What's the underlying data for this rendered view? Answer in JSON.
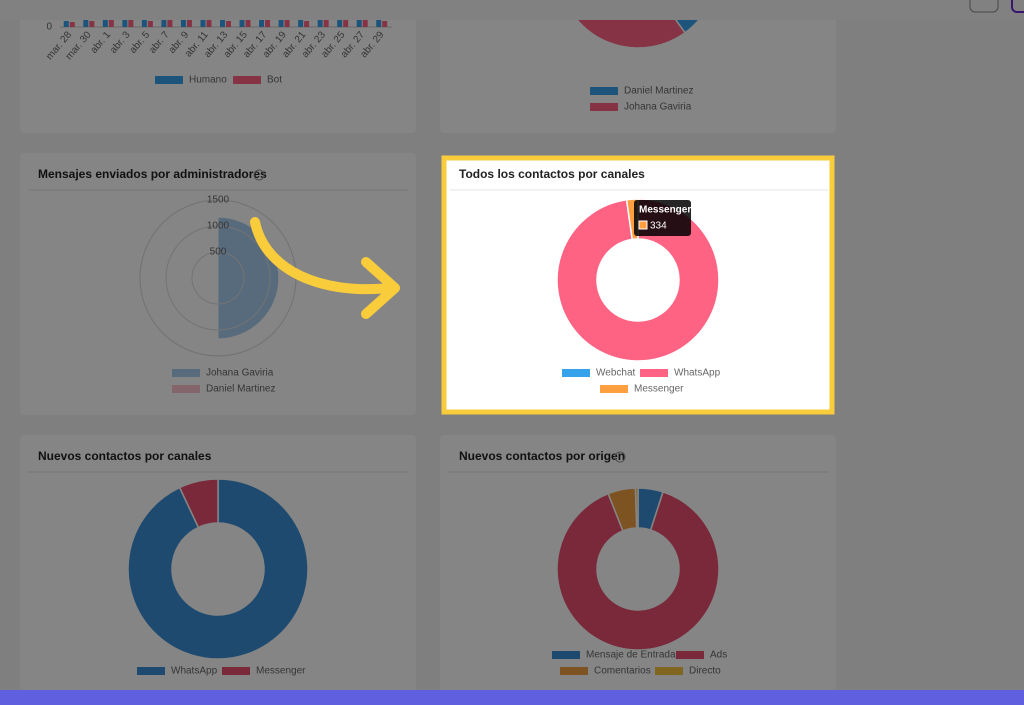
{
  "chart_data": [
    {
      "type": "bar",
      "categories": [
        "mar. 28",
        "mar. 30",
        "abr. 1",
        "abr. 3",
        "abr. 5",
        "abr. 7",
        "abr. 9",
        "abr. 11",
        "abr. 13",
        "abr. 15",
        "abr. 17",
        "abr. 19",
        "abr. 21",
        "abr. 23",
        "abr. 25",
        "abr. 27",
        "abr. 29"
      ],
      "series": [
        {
          "name": "Humano",
          "color": "#36a2eb",
          "values": [
            6,
            8,
            7,
            9,
            8,
            7,
            9,
            8,
            7,
            8,
            9,
            8,
            7,
            8,
            9,
            8,
            7
          ]
        },
        {
          "name": "Bot",
          "color": "#ff6384",
          "values": [
            5,
            6,
            7,
            8,
            6,
            7,
            8,
            7,
            6,
            7,
            8,
            7,
            6,
            7,
            8,
            7,
            6
          ]
        }
      ],
      "ylim": [
        0,
        100
      ],
      "yticks": [
        0
      ]
    },
    {
      "type": "pie",
      "categories": [
        "Daniel Martinez",
        "Johana Gaviria"
      ],
      "colors": [
        "#36a2eb",
        "#ff6384"
      ],
      "values": [
        40,
        60
      ]
    },
    {
      "type": "polarArea",
      "title": "Mensajes enviados por administradores",
      "categories": [
        "Johana Gaviria",
        "Daniel Martinez"
      ],
      "colors": [
        "#a9cdef",
        "#ffc2cf"
      ],
      "values": [
        1170,
        0
      ],
      "rlim": [
        0,
        1500
      ],
      "rticks": [
        500,
        1000,
        1500
      ]
    },
    {
      "type": "doughnut",
      "title": "Todos los contactos por canales",
      "categories": [
        "Webchat",
        "WhatsApp",
        "Messenger"
      ],
      "colors": [
        "#36a2eb",
        "#ff6384",
        "#ff9f40"
      ],
      "values": [
        0,
        14500,
        334
      ],
      "tooltip_index": 2
    },
    {
      "type": "doughnut",
      "title": "Nuevos contactos por canales",
      "categories": [
        "WhatsApp",
        "Messenger"
      ],
      "colors": [
        "#3c8fd6",
        "#e8506e"
      ],
      "values": [
        93,
        7
      ]
    },
    {
      "type": "doughnut",
      "title": "Nuevos contactos por origen",
      "categories": [
        "Mensaje de Entrada",
        "Ads",
        "Comentarios",
        "Directo"
      ],
      "colors": [
        "#3c8fd6",
        "#e8506e",
        "#f0a040",
        "#f7c340"
      ],
      "values": [
        5,
        89,
        5.5,
        0.5
      ]
    }
  ]
}
